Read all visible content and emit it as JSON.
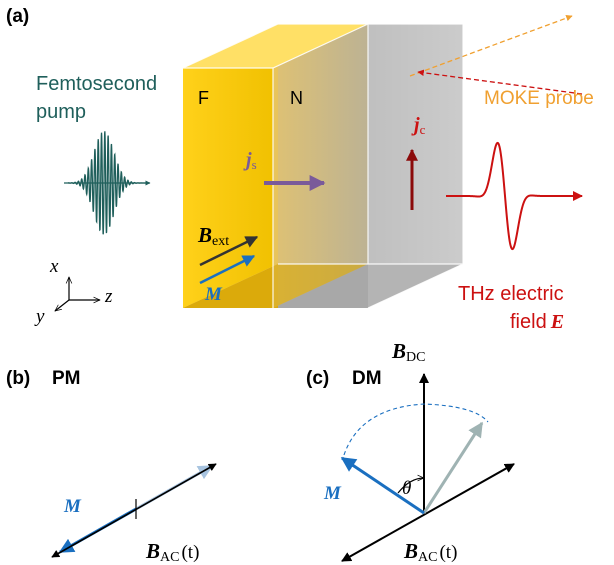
{
  "panels": {
    "a": {
      "label": "(a)"
    },
    "b": {
      "label": "(b)",
      "title": "PM"
    },
    "c": {
      "label": "(c)",
      "title": "DM"
    }
  },
  "pump": {
    "line1": "Femtosecond",
    "line2": "pump"
  },
  "layers": {
    "ferromagnet": "F",
    "normal_metal": "N"
  },
  "spin_current": {
    "symbol": "j",
    "subscript": "s"
  },
  "charge_current": {
    "symbol": "j",
    "subscript": "c"
  },
  "field_ext": {
    "symbol": "B",
    "subscript": "ext"
  },
  "magnetization": "M",
  "moke": "MOKE probe",
  "thz": {
    "line1": "THz electric",
    "line2": "field",
    "symbol": "E"
  },
  "axes": {
    "x": "x",
    "y": "y",
    "z": "z"
  },
  "field_dc": {
    "symbol": "B",
    "subscript": "DC"
  },
  "field_ac": {
    "symbol": "B",
    "subscript": "AC",
    "argument": "(t)"
  },
  "angle": "θ",
  "colors": {
    "pump": "#1f5f5b",
    "ferromagnet": "#f5c400",
    "normal_metal": "#b0b0b0",
    "spin_current": "#7a5a9a",
    "charge_current": "#8b0a0a",
    "thz": "#cc1111",
    "moke": "#f0a030",
    "magnetization": "#1a6fc0",
    "magnetization_faded": "#a8c4e0",
    "dm_faded": "#9fb3b3"
  }
}
